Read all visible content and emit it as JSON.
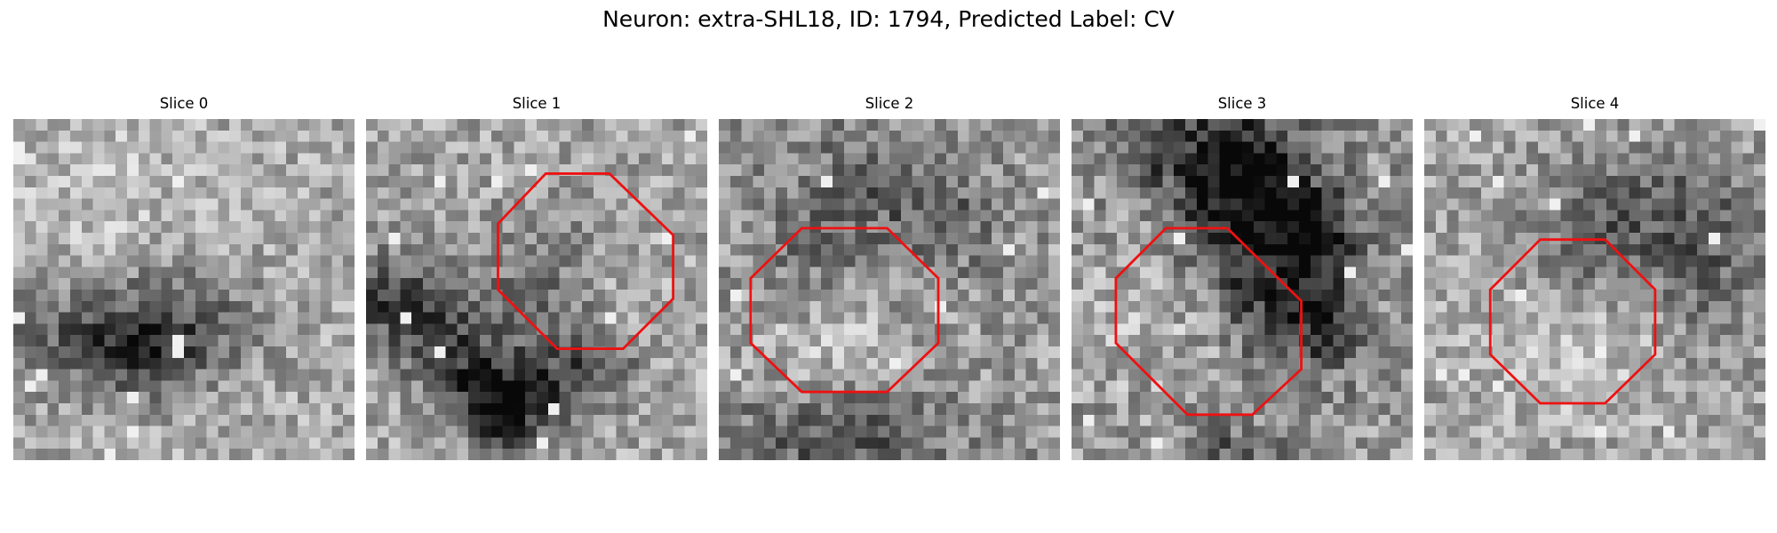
{
  "figure": {
    "title": "Neuron: extra-SHL18, ID: 1794, Predicted Label: CV",
    "neuron_name": "extra-SHL18",
    "neuron_id": 1794,
    "predicted_label": "CV",
    "overlay_color": "#ee1111",
    "panels": [
      {
        "title": "Slice 0",
        "has_overlay": false,
        "image_description": "noisy grayscale patch with dark blob in left center"
      },
      {
        "title": "Slice 1",
        "has_overlay": true,
        "image_description": "noisy grayscale patch with dark crescent band along lower left"
      },
      {
        "title": "Slice 2",
        "has_overlay": true,
        "image_description": "noisy grayscale patch with dark region upper center and bottom"
      },
      {
        "title": "Slice 3",
        "has_overlay": true,
        "image_description": "noisy grayscale patch with dark diagonal band from top center to right"
      },
      {
        "title": "Slice 4",
        "has_overlay": true,
        "image_description": "noisy grayscale patch with dark region upper right"
      }
    ]
  }
}
